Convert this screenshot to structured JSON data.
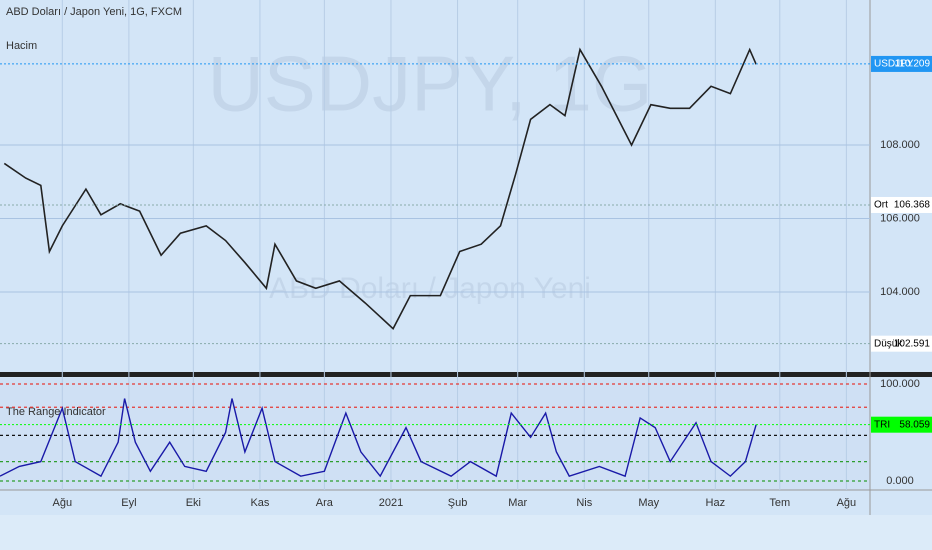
{
  "header": {
    "title": "ABD Doları / Japon Yeni, 1G, FXCM",
    "volume_label": "Hacim"
  },
  "watermark": {
    "symbol": "USDJPY, 1G",
    "name": "ABD Doları / Japon Yeni"
  },
  "chart_data": [
    {
      "type": "line",
      "color": "#222222",
      "x": [
        -27,
        -17,
        -10,
        -6,
        0,
        11,
        18,
        27,
        36,
        46,
        55,
        67,
        76,
        85,
        95,
        99,
        109,
        118,
        129,
        141,
        154,
        162,
        176,
        185,
        195,
        204,
        211,
        218,
        227,
        234,
        241,
        251,
        258,
        265,
        274,
        283,
        292,
        302,
        311,
        320,
        323
      ],
      "values": [
        107.5,
        107.1,
        106.9,
        105.1,
        105.8,
        106.8,
        106.1,
        106.4,
        106.2,
        105.0,
        105.6,
        105.8,
        105.4,
        104.8,
        104.1,
        105.3,
        104.3,
        104.1,
        104.3,
        103.7,
        103.0,
        103.9,
        103.9,
        105.1,
        105.3,
        105.8,
        107.2,
        108.7,
        109.1,
        108.8,
        110.6,
        109.6,
        108.8,
        108.0,
        109.1,
        109.0,
        109.0,
        109.6,
        109.4,
        110.6,
        110.2
      ],
      "xlim": [
        -29,
        376
      ],
      "ylim": [
        101.82,
        111.95
      ],
      "xticks": [
        {
          "value": 0,
          "label": "Ağu"
        },
        {
          "value": 31,
          "label": "Eyl"
        },
        {
          "value": 61,
          "label": "Eki"
        },
        {
          "value": 92,
          "label": "Kas"
        },
        {
          "value": 122,
          "label": "Ara"
        },
        {
          "value": 153,
          "label": "2021"
        },
        {
          "value": 184,
          "label": "Şub"
        },
        {
          "value": 212,
          "label": "Mar"
        },
        {
          "value": 243,
          "label": "Nis"
        },
        {
          "value": 273,
          "label": "May"
        },
        {
          "value": 304,
          "label": "Haz"
        },
        {
          "value": 334,
          "label": "Tem"
        },
        {
          "value": 365,
          "label": "Ağu"
        }
      ],
      "yticks": [
        {
          "value": 108,
          "label": "108.000"
        },
        {
          "value": 106,
          "label": "106.000"
        },
        {
          "value": 104,
          "label": "104.000"
        }
      ],
      "price_labels": [
        {
          "label": "USDJPY",
          "value": 110.209,
          "color": "#2196f3"
        },
        {
          "label": "Ort",
          "value": 106.368,
          "color": "#ffffff"
        },
        {
          "label": "Düşük",
          "value": 102.591,
          "color": "#ffffff"
        }
      ]
    },
    {
      "type": "line",
      "title": "The Range Indicator",
      "color": "#1a1aa8",
      "x": [
        -29,
        -20,
        -10,
        0,
        6,
        18,
        26,
        29,
        34,
        41,
        50,
        57,
        67,
        76,
        79,
        85,
        93,
        99,
        111,
        122,
        132,
        139,
        148,
        160,
        167,
        181,
        190,
        202,
        209,
        218,
        225,
        230,
        236,
        250,
        262,
        269,
        276,
        283,
        295,
        302,
        311,
        318,
        323
      ],
      "values": [
        5,
        15,
        20,
        75,
        20,
        5,
        40,
        85,
        40,
        10,
        40,
        15,
        10,
        50,
        85,
        30,
        75,
        20,
        5,
        10,
        70,
        30,
        5,
        55,
        20,
        5,
        20,
        5,
        70,
        45,
        70,
        30,
        5,
        15,
        5,
        65,
        55,
        20,
        60,
        20,
        5,
        20,
        58.059
      ],
      "xlim": [
        -29,
        376
      ],
      "ylim": [
        -9.3,
        106.2
      ],
      "yticks": [
        {
          "value": 100,
          "label": "100.000"
        },
        {
          "value": 0,
          "label": "0.000"
        }
      ],
      "levels": [
        {
          "value": 100,
          "color": "#e53935"
        },
        {
          "value": 76,
          "color": "#e53935"
        },
        {
          "value": 47,
          "color": "#111111"
        },
        {
          "value": 20,
          "color": "#2e9e2e"
        },
        {
          "value": 0,
          "color": "#2e9e2e"
        }
      ],
      "last_label": {
        "label": "TRI",
        "value": 58.059,
        "color": "#00ff00"
      }
    }
  ]
}
